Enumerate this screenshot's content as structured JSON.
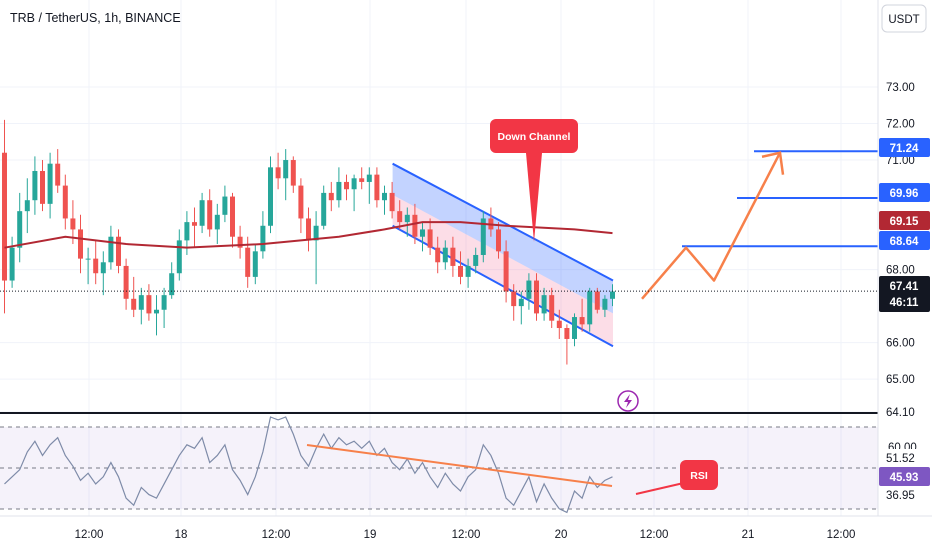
{
  "header": {
    "title": "TRB / TetherUS, 1h, BINANCE"
  },
  "currency_button": "USDT",
  "annotations": {
    "down_channel": "Down Channel",
    "rsi": "RSI"
  },
  "price_tags": {
    "level_1": "71.24",
    "level_2": "69.96",
    "ma_value": "69.15",
    "level_3": "68.64",
    "last_price": "67.41",
    "countdown": "46:11"
  },
  "rsi_tags": {
    "upper": "51.52",
    "current": "45.93",
    "lower": "36.95"
  },
  "colors": {
    "up": "#26a69a",
    "down": "#ef5350",
    "ma": "#b22833",
    "channel": "#2962ff",
    "projection": "#f7804a",
    "rsi_line": "#7e8ba8",
    "level_line": "#2962ff"
  },
  "chart_data": {
    "type": "candlestick",
    "symbol": "TRB / TetherUS",
    "interval": "1h",
    "exchange": "BINANCE",
    "y_ticks": [
      "73.00",
      "72.00",
      "71.00",
      "68.00",
      "66.00",
      "65.00",
      "64.10"
    ],
    "x_ticks": [
      "12:00",
      "18",
      "12:00",
      "19",
      "12:00",
      "20",
      "12:00",
      "21",
      "12:00"
    ],
    "ylim": [
      64.1,
      74.3
    ],
    "candles": [
      [
        71.2,
        72.1,
        66.8,
        67.7
      ],
      [
        67.7,
        68.9,
        67.5,
        68.6
      ],
      [
        68.6,
        70.1,
        68.2,
        69.6
      ],
      [
        69.6,
        70.5,
        69.0,
        69.9
      ],
      [
        69.9,
        71.1,
        69.5,
        70.7
      ],
      [
        70.7,
        71.0,
        69.6,
        69.8
      ],
      [
        69.8,
        71.2,
        69.4,
        70.9
      ],
      [
        70.9,
        71.3,
        70.1,
        70.3
      ],
      [
        70.3,
        70.6,
        69.1,
        69.4
      ],
      [
        69.4,
        69.9,
        68.7,
        69.1
      ],
      [
        69.1,
        69.5,
        67.9,
        68.3
      ],
      [
        68.3,
        68.6,
        67.6,
        68.3
      ],
      [
        68.3,
        68.8,
        67.6,
        67.9
      ],
      [
        67.9,
        68.5,
        67.3,
        68.2
      ],
      [
        68.2,
        69.2,
        68.0,
        68.9
      ],
      [
        68.9,
        69.1,
        67.9,
        68.1
      ],
      [
        68.1,
        68.3,
        66.9,
        67.2
      ],
      [
        67.2,
        67.8,
        66.7,
        66.9
      ],
      [
        66.9,
        67.5,
        66.5,
        67.3
      ],
      [
        67.3,
        67.6,
        66.6,
        66.8
      ],
      [
        66.8,
        67.3,
        66.2,
        66.9
      ],
      [
        66.9,
        67.5,
        66.4,
        67.3
      ],
      [
        67.3,
        68.2,
        67.2,
        67.9
      ],
      [
        67.9,
        69.1,
        67.7,
        68.8
      ],
      [
        68.8,
        69.6,
        68.4,
        69.3
      ],
      [
        69.3,
        69.7,
        68.6,
        69.2
      ],
      [
        69.2,
        70.1,
        69.0,
        69.9
      ],
      [
        69.9,
        70.2,
        68.9,
        69.1
      ],
      [
        69.1,
        69.8,
        68.7,
        69.5
      ],
      [
        69.5,
        70.3,
        69.3,
        70.0
      ],
      [
        70.0,
        70.1,
        68.6,
        68.9
      ],
      [
        68.9,
        69.2,
        68.3,
        68.6
      ],
      [
        68.6,
        68.9,
        67.5,
        67.8
      ],
      [
        67.8,
        68.7,
        67.6,
        68.5
      ],
      [
        68.5,
        69.6,
        68.3,
        69.2
      ],
      [
        69.2,
        71.1,
        69.0,
        70.8
      ],
      [
        70.8,
        71.2,
        70.2,
        70.5
      ],
      [
        70.5,
        71.3,
        69.9,
        71.0
      ],
      [
        71.0,
        71.1,
        70.1,
        70.3
      ],
      [
        70.3,
        70.5,
        69.0,
        69.4
      ],
      [
        69.4,
        69.7,
        68.5,
        68.8
      ],
      [
        68.8,
        69.6,
        67.6,
        69.2
      ],
      [
        69.2,
        70.3,
        69.1,
        70.1
      ],
      [
        70.1,
        70.4,
        69.6,
        69.9
      ],
      [
        69.9,
        70.8,
        69.7,
        70.4
      ],
      [
        70.4,
        70.6,
        69.9,
        70.2
      ],
      [
        70.2,
        70.6,
        69.6,
        70.5
      ],
      [
        70.5,
        70.8,
        70.2,
        70.4
      ],
      [
        70.4,
        70.8,
        69.8,
        70.6
      ],
      [
        70.6,
        70.8,
        69.7,
        69.9
      ],
      [
        69.9,
        70.3,
        69.5,
        70.1
      ],
      [
        70.1,
        70.4,
        69.4,
        69.6
      ],
      [
        69.6,
        69.9,
        69.1,
        69.3
      ],
      [
        69.3,
        69.7,
        68.9,
        69.5
      ],
      [
        69.5,
        69.8,
        68.7,
        68.9
      ],
      [
        68.9,
        69.3,
        68.5,
        69.1
      ],
      [
        69.1,
        69.4,
        68.4,
        68.6
      ],
      [
        68.6,
        68.9,
        67.9,
        68.2
      ],
      [
        68.2,
        68.8,
        68.0,
        68.6
      ],
      [
        68.6,
        68.9,
        67.8,
        68.1
      ],
      [
        68.1,
        68.5,
        67.6,
        67.8
      ],
      [
        67.8,
        68.3,
        67.5,
        68.1
      ],
      [
        68.1,
        68.6,
        67.9,
        68.4
      ],
      [
        68.4,
        69.6,
        68.2,
        69.4
      ],
      [
        69.4,
        69.7,
        68.9,
        69.1
      ],
      [
        69.1,
        69.3,
        68.3,
        68.5
      ],
      [
        68.5,
        68.8,
        67.1,
        67.4
      ],
      [
        67.4,
        67.6,
        66.6,
        67.0
      ],
      [
        67.0,
        67.4,
        66.5,
        67.2
      ],
      [
        67.2,
        67.9,
        66.9,
        67.7
      ],
      [
        67.7,
        67.9,
        66.6,
        66.8
      ],
      [
        66.8,
        67.5,
        66.6,
        67.3
      ],
      [
        67.3,
        67.5,
        66.4,
        66.6
      ],
      [
        66.6,
        66.9,
        66.1,
        66.4
      ],
      [
        66.4,
        66.5,
        65.4,
        66.1
      ],
      [
        66.1,
        66.8,
        65.9,
        66.7
      ],
      [
        66.7,
        67.2,
        66.3,
        66.5
      ],
      [
        66.5,
        67.5,
        66.3,
        67.4
      ],
      [
        67.4,
        67.5,
        66.8,
        66.9
      ],
      [
        66.9,
        67.3,
        66.7,
        67.2
      ],
      [
        67.2,
        67.6,
        67.0,
        67.4
      ]
    ],
    "moving_average": {
      "points": [
        [
          0,
          68.6
        ],
        [
          8,
          68.9
        ],
        [
          16,
          68.7
        ],
        [
          24,
          68.6
        ],
        [
          34,
          68.7
        ],
        [
          44,
          68.9
        ],
        [
          50,
          69.1
        ],
        [
          55,
          69.3
        ],
        [
          60,
          69.3
        ],
        [
          66,
          69.2
        ],
        [
          75,
          69.1
        ],
        [
          80,
          69.0
        ]
      ],
      "last_value": 69.15
    },
    "down_channel": {
      "label": "Down Channel",
      "upper": [
        [
          51,
          70.9
        ],
        [
          80,
          67.7
        ]
      ],
      "lower": [
        [
          51,
          69.2
        ],
        [
          80,
          65.9
        ]
      ]
    },
    "horizontal_levels": [
      71.24,
      69.96,
      68.64
    ],
    "projection_path": [
      [
        67.2
      ],
      [
        68.6
      ],
      [
        67.7
      ],
      [
        71.2
      ]
    ],
    "last_price": 67.41,
    "rsi": {
      "label": "RSI",
      "levels": [
        51.52,
        36.95
      ],
      "current": 45.93,
      "values": [
        44,
        46,
        48,
        53,
        56,
        52,
        55,
        57,
        52,
        49,
        45,
        47,
        44,
        46,
        50,
        46,
        40,
        38,
        43,
        41,
        40,
        44,
        48,
        52,
        55,
        54,
        57,
        50,
        52,
        55,
        48,
        45,
        41,
        46,
        53,
        64,
        62,
        65,
        58,
        52,
        49,
        54,
        58,
        54,
        57,
        55,
        56,
        54,
        56,
        52,
        54,
        50,
        48,
        51,
        47,
        50,
        46,
        43,
        47,
        44,
        42,
        46,
        48,
        55,
        52,
        47,
        40,
        38,
        42,
        46,
        39,
        44,
        40,
        37,
        36,
        42,
        40,
        46,
        43,
        45,
        46
      ]
    }
  }
}
